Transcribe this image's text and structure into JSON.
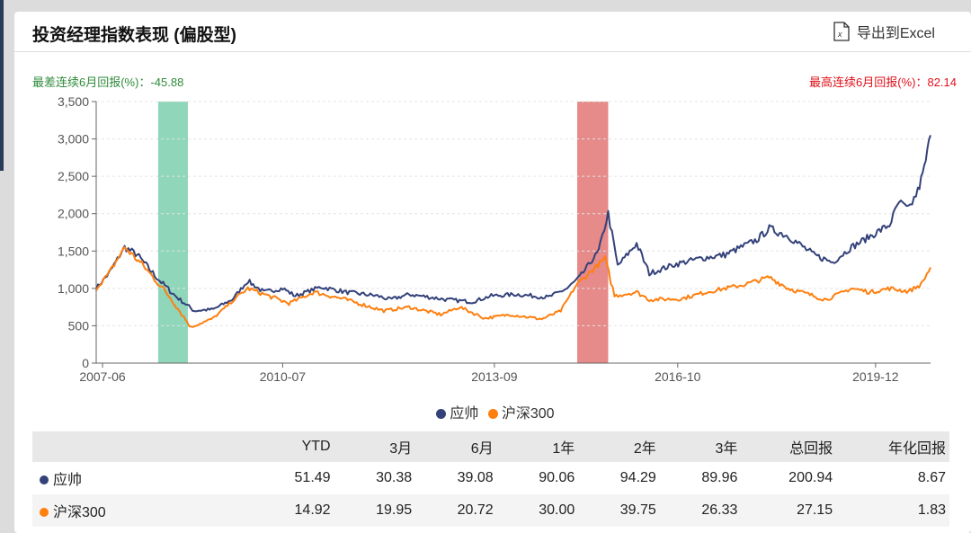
{
  "header": {
    "title": "投资经理指数表现 (偏股型)",
    "export_label": "导出到Excel"
  },
  "stats": {
    "worst_label": "最差连续6月回报(%)：-45.88",
    "best_label": "最高连续6月回报(%)：82.14"
  },
  "colors": {
    "fund": "#34427a",
    "index": "#ff7f0e",
    "worst_band": "#8fd6ba",
    "best_band": "#e68a8a"
  },
  "chart_data": {
    "type": "line",
    "ylim": [
      0,
      3500
    ],
    "yticks": [
      0,
      500,
      1000,
      1500,
      2000,
      2500,
      3000,
      3500
    ],
    "ytick_labels": [
      "0",
      "500",
      "1,000",
      "1,500",
      "2,000",
      "2,500",
      "3,000",
      "3,500"
    ],
    "xlim": [
      2007.35,
      2020.55
    ],
    "xticks": [
      {
        "x": 2007.45,
        "label": "2007-06"
      },
      {
        "x": 2010.3,
        "label": "2010-07"
      },
      {
        "x": 2013.65,
        "label": "2013-09"
      },
      {
        "x": 2016.55,
        "label": "2016-10"
      },
      {
        "x": 2019.68,
        "label": "2019-12"
      }
    ],
    "bands": [
      {
        "name": "worst-6m",
        "from": 2008.33,
        "to": 2008.8,
        "color": "#8fd6ba"
      },
      {
        "name": "best-6m",
        "from": 2014.96,
        "to": 2015.45,
        "color": "#e68a8a"
      }
    ],
    "legend": [
      "应帅",
      "沪深300"
    ],
    "series": [
      {
        "name": "应帅",
        "color": "#34427a",
        "points": [
          [
            2007.35,
            1000
          ],
          [
            2007.55,
            1200
          ],
          [
            2007.8,
            1550
          ],
          [
            2008.0,
            1450
          ],
          [
            2008.3,
            1150
          ],
          [
            2008.6,
            900
          ],
          [
            2008.9,
            700
          ],
          [
            2009.2,
            720
          ],
          [
            2009.5,
            850
          ],
          [
            2009.75,
            1100
          ],
          [
            2010.0,
            950
          ],
          [
            2010.3,
            1000
          ],
          [
            2010.5,
            900
          ],
          [
            2010.9,
            1020
          ],
          [
            2011.3,
            950
          ],
          [
            2011.8,
            900
          ],
          [
            2012.0,
            850
          ],
          [
            2012.3,
            920
          ],
          [
            2012.9,
            850
          ],
          [
            2013.3,
            820
          ],
          [
            2013.6,
            900
          ],
          [
            2014.0,
            920
          ],
          [
            2014.5,
            880
          ],
          [
            2014.8,
            1000
          ],
          [
            2015.0,
            1150
          ],
          [
            2015.3,
            1500
          ],
          [
            2015.45,
            2000
          ],
          [
            2015.6,
            1300
          ],
          [
            2015.9,
            1600
          ],
          [
            2016.1,
            1200
          ],
          [
            2016.5,
            1320
          ],
          [
            2016.9,
            1400
          ],
          [
            2017.3,
            1450
          ],
          [
            2017.8,
            1650
          ],
          [
            2018.0,
            1800
          ],
          [
            2018.3,
            1700
          ],
          [
            2018.7,
            1450
          ],
          [
            2019.0,
            1350
          ],
          [
            2019.3,
            1550
          ],
          [
            2019.6,
            1700
          ],
          [
            2019.9,
            1850
          ],
          [
            2020.05,
            2150
          ],
          [
            2020.2,
            2050
          ],
          [
            2020.35,
            2300
          ],
          [
            2020.45,
            2600
          ],
          [
            2020.55,
            3050
          ]
        ]
      },
      {
        "name": "沪深300",
        "color": "#ff7f0e",
        "points": [
          [
            2007.35,
            1000
          ],
          [
            2007.55,
            1200
          ],
          [
            2007.8,
            1550
          ],
          [
            2008.1,
            1300
          ],
          [
            2008.5,
            900
          ],
          [
            2008.85,
            480
          ],
          [
            2009.2,
            600
          ],
          [
            2009.6,
            900
          ],
          [
            2009.75,
            1000
          ],
          [
            2010.4,
            800
          ],
          [
            2010.8,
            950
          ],
          [
            2011.3,
            850
          ],
          [
            2011.9,
            700
          ],
          [
            2012.3,
            750
          ],
          [
            2012.8,
            650
          ],
          [
            2013.1,
            750
          ],
          [
            2013.5,
            600
          ],
          [
            2013.9,
            650
          ],
          [
            2014.4,
            590
          ],
          [
            2014.7,
            700
          ],
          [
            2014.95,
            1050
          ],
          [
            2015.4,
            1400
          ],
          [
            2015.55,
            900
          ],
          [
            2015.9,
            950
          ],
          [
            2016.1,
            850
          ],
          [
            2016.6,
            860
          ],
          [
            2017.0,
            950
          ],
          [
            2017.6,
            1050
          ],
          [
            2018.0,
            1150
          ],
          [
            2018.3,
            1000
          ],
          [
            2018.9,
            850
          ],
          [
            2019.3,
            1000
          ],
          [
            2019.6,
            950
          ],
          [
            2019.9,
            1000
          ],
          [
            2020.2,
            960
          ],
          [
            2020.4,
            1050
          ],
          [
            2020.55,
            1280
          ]
        ]
      }
    ]
  },
  "table": {
    "headers": [
      "",
      "YTD",
      "3月",
      "6月",
      "1年",
      "2年",
      "3年",
      "总回报",
      "年化回报"
    ],
    "rows": [
      {
        "name": "应帅",
        "color": "#34427a",
        "values": [
          "51.49",
          "30.38",
          "39.08",
          "90.06",
          "94.29",
          "89.96",
          "200.94",
          "8.67"
        ]
      },
      {
        "name": "沪深300",
        "color": "#ff7f0e",
        "values": [
          "14.92",
          "19.95",
          "20.72",
          "30.00",
          "39.75",
          "26.33",
          "27.15",
          "1.83"
        ]
      }
    ]
  }
}
